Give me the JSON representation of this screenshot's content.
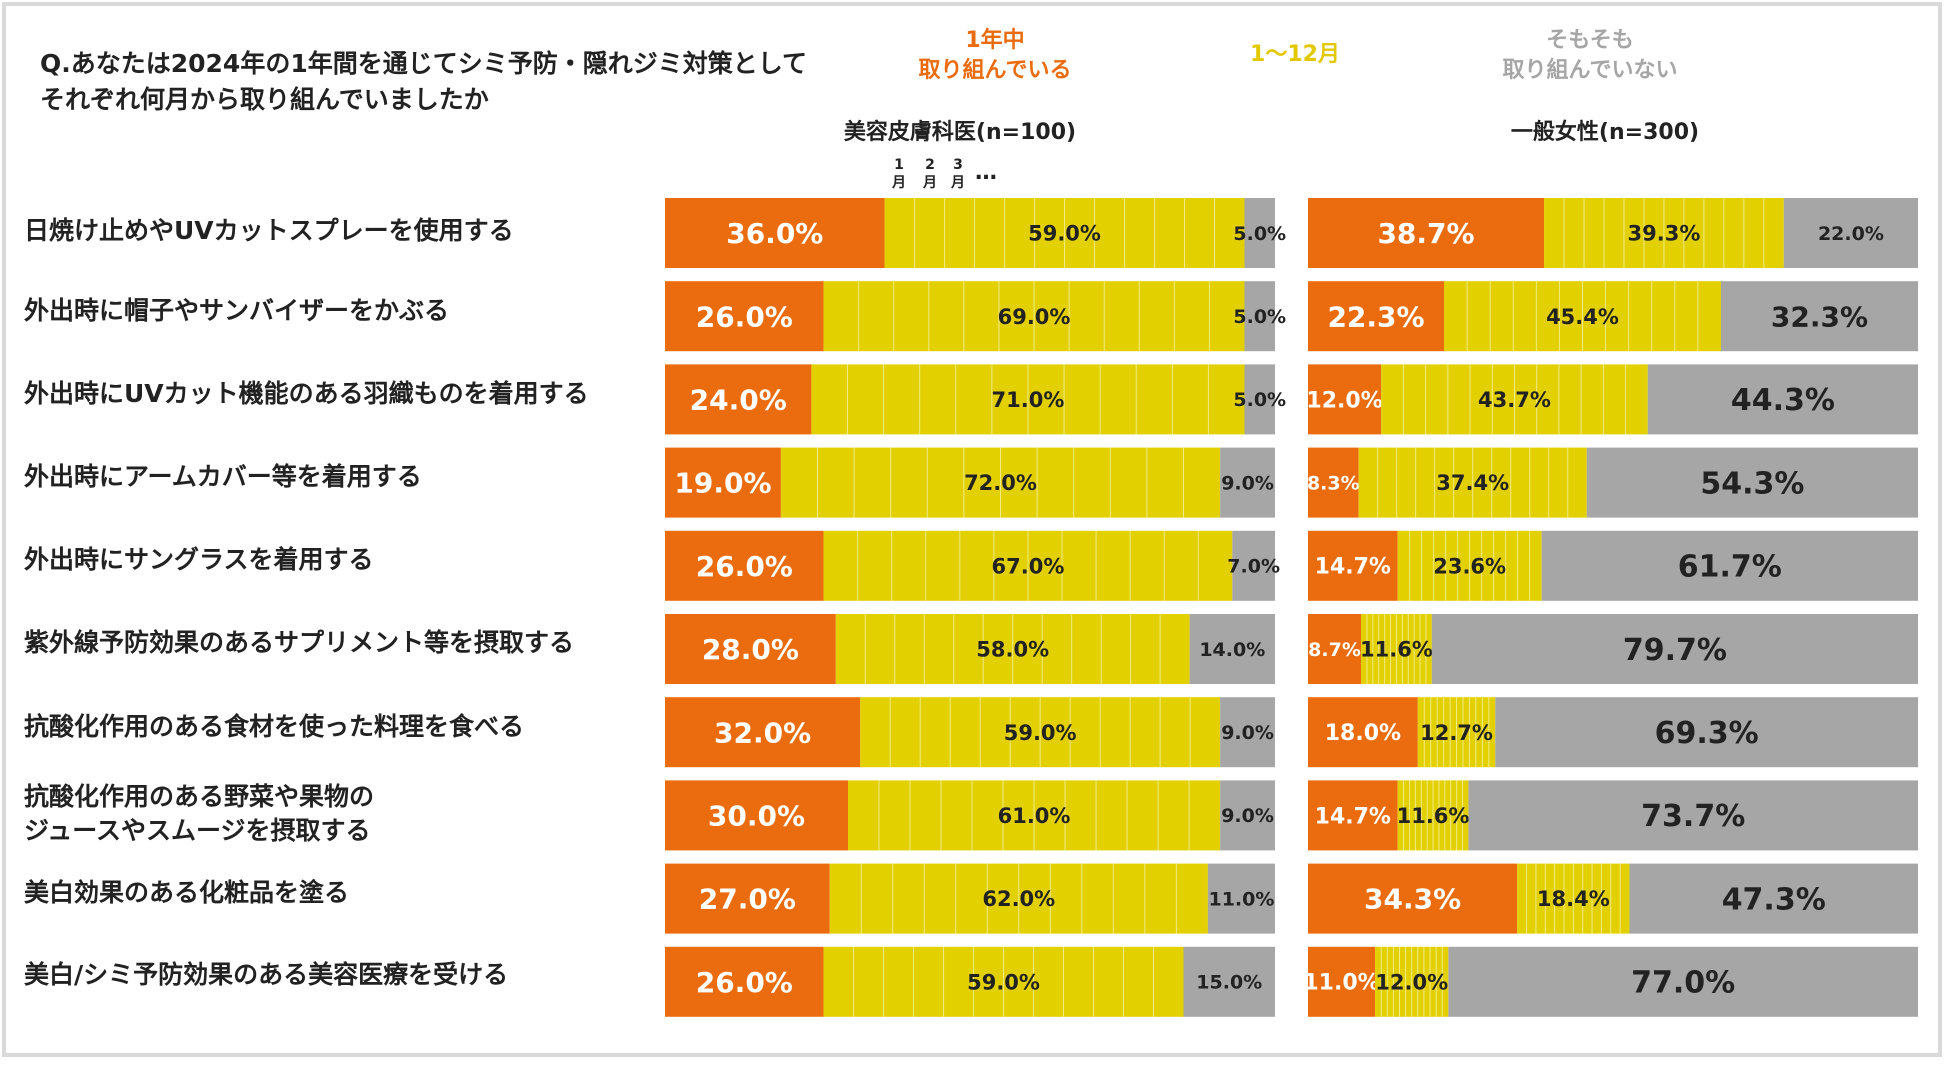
{
  "question": {
    "line1": "Q.あなたは2024年の1年間を通じてシミ予防・隠れジミ対策として",
    "line2": "それぞれ何月から取り組んでいましたか"
  },
  "legend": {
    "all_year": {
      "line1": "1年中",
      "line2": "取り組んでいる",
      "color": "#EA6C0E"
    },
    "months": {
      "label": "1〜12月",
      "color": "#E2D000"
    },
    "never": {
      "line1": "そもそも",
      "line2": "取り組んでいない",
      "color": "#A6A6A6"
    }
  },
  "month_ticks": [
    {
      "num": "1",
      "unit": "月"
    },
    {
      "num": "2",
      "unit": "月"
    },
    {
      "num": "3",
      "unit": "月"
    }
  ],
  "month_ellipsis": "…",
  "row_labels": [
    [
      "日焼け止めやUVカットスプレーを使用する"
    ],
    [
      "外出時に帽子やサンバイザーをかぶる"
    ],
    [
      "外出時にUVカット機能のある羽織ものを着用する"
    ],
    [
      "外出時にアームカバー等を着用する"
    ],
    [
      "外出時にサングラスを着用する"
    ],
    [
      "紫外線予防効果のあるサプリメント等を摂取する"
    ],
    [
      "抗酸化作用のある食材を使った料理を食べる"
    ],
    [
      "抗酸化作用のある野菜や果物の",
      "ジュースやスムージを摂取する"
    ],
    [
      "美白効果のある化粧品を塗る"
    ],
    [
      "美白/シミ予防効果のある美容医療を受ける"
    ]
  ],
  "chart_data": [
    {
      "type": "bar",
      "orientation": "horizontal",
      "stacked": true,
      "title": "美容皮膚科医(n=100)",
      "unit": "%",
      "xlim": [
        0,
        100
      ],
      "categories": [
        "日焼け止めやUVカットスプレーを使用する",
        "外出時に帽子やサンバイザーをかぶる",
        "外出時にUVカット機能のある羽織ものを着用する",
        "外出時にアームカバー等を着用する",
        "外出時にサングラスを着用する",
        "紫外線予防効果のあるサプリメント等を摂取する",
        "抗酸化作用のある食材を使った料理を食べる",
        "抗酸化作用のある野菜や果物のジュースやスムージを摂取する",
        "美白効果のある化粧品を塗る",
        "美白/シミ予防効果のある美容医療を受ける"
      ],
      "series": [
        {
          "name": "1年中取り組んでいる",
          "color": "#EA6C0E",
          "values": [
            36.0,
            26.0,
            24.0,
            19.0,
            26.0,
            28.0,
            32.0,
            30.0,
            27.0,
            26.0
          ],
          "labels": [
            "36.0%",
            "26.0%",
            "24.0%",
            "19.0%",
            "26.0%",
            "28.0%",
            "32.0%",
            "30.0%",
            "27.0%",
            "26.0%"
          ]
        },
        {
          "name": "1〜12月",
          "color": "#E2D000",
          "values": [
            59.0,
            69.0,
            71.0,
            72.0,
            67.0,
            58.0,
            59.0,
            61.0,
            62.0,
            59.0
          ],
          "labels": [
            "59.0%",
            "69.0%",
            "71.0%",
            "72.0%",
            "67.0%",
            "58.0%",
            "59.0%",
            "61.0%",
            "62.0%",
            "59.0%"
          ]
        },
        {
          "name": "そもそも取り組んでいない",
          "color": "#A6A6A6",
          "values": [
            5.0,
            5.0,
            5.0,
            9.0,
            7.0,
            14.0,
            9.0,
            9.0,
            11.0,
            15.0
          ],
          "labels": [
            "5.0%",
            "5.0%",
            "5.0%",
            "9.0%",
            "7.0%",
            "14.0%",
            "9.0%",
            "9.0%",
            "11.0%",
            "15.0%"
          ]
        }
      ]
    },
    {
      "type": "bar",
      "orientation": "horizontal",
      "stacked": true,
      "title": "一般女性(n=300)",
      "unit": "%",
      "xlim": [
        0,
        100
      ],
      "categories": [
        "日焼け止めやUVカットスプレーを使用する",
        "外出時に帽子やサンバイザーをかぶる",
        "外出時にUVカット機能のある羽織ものを着用する",
        "外出時にアームカバー等を着用する",
        "外出時にサングラスを着用する",
        "紫外線予防効果のあるサプリメント等を摂取する",
        "抗酸化作用のある食材を使った料理を食べる",
        "抗酸化作用のある野菜や果物のジュースやスムージを摂取する",
        "美白効果のある化粧品を塗る",
        "美白/シミ予防効果のある美容医療を受ける"
      ],
      "series": [
        {
          "name": "1年中取り組んでいる",
          "color": "#EA6C0E",
          "values": [
            38.7,
            22.3,
            12.0,
            8.3,
            14.7,
            8.7,
            18.0,
            14.7,
            34.3,
            11.0
          ],
          "labels": [
            "38.7%",
            "22.3%",
            "12.0%",
            "8.3%",
            "14.7%",
            "8.7%",
            "18.0%",
            "14.7%",
            "34.3%",
            "11.0%"
          ]
        },
        {
          "name": "1〜12月",
          "color": "#E2D000",
          "values": [
            39.3,
            45.4,
            43.7,
            37.4,
            23.6,
            11.6,
            12.7,
            11.6,
            18.4,
            12.0
          ],
          "labels": [
            "39.3%",
            "45.4%",
            "43.7%",
            "37.4%",
            "23.6%",
            "11.6%",
            "12.7%",
            "11.6%",
            "18.4%",
            "12.0%"
          ]
        },
        {
          "name": "そもそも取り組んでいない",
          "color": "#A6A6A6",
          "values": [
            22.0,
            32.3,
            44.3,
            54.3,
            61.7,
            79.7,
            69.3,
            73.7,
            47.3,
            77.0
          ],
          "labels": [
            "22.0%",
            "32.3%",
            "44.3%",
            "54.3%",
            "61.7%",
            "79.7%",
            "69.3%",
            "73.7%",
            "47.3%",
            "77.0%"
          ]
        }
      ]
    }
  ]
}
